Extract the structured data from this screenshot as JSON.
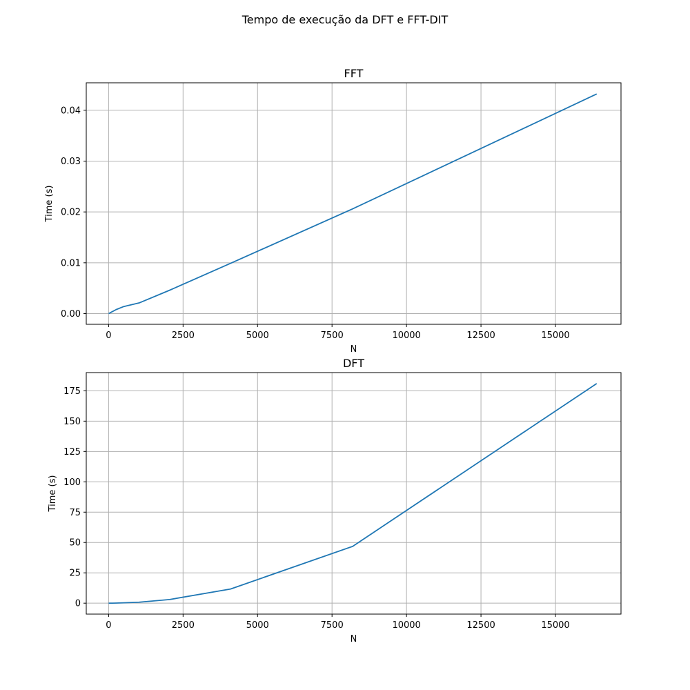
{
  "figure": {
    "suptitle": "Tempo de execução da DFT e FFT-DIT"
  },
  "colors": {
    "series": "#1f77b4",
    "grid": "#b0b0b0"
  },
  "chart_data": [
    {
      "type": "line",
      "title": "FFT",
      "xlabel": "N",
      "ylabel": "Time (s)",
      "grid": true,
      "xlim": [
        -750,
        17200
      ],
      "ylim": [
        -0.0021,
        0.0454
      ],
      "xticks": [
        0,
        2500,
        5000,
        7500,
        10000,
        12500,
        15000
      ],
      "xtick_labels": [
        "0",
        "2500",
        "5000",
        "7500",
        "10000",
        "12500",
        "15000"
      ],
      "yticks": [
        0.0,
        0.01,
        0.02,
        0.03,
        0.04
      ],
      "ytick_labels": [
        "0.00",
        "0.01",
        "0.02",
        "0.03",
        "0.04"
      ],
      "series": [
        {
          "x": [
            2,
            4,
            8,
            16,
            32,
            64,
            128,
            256,
            512,
            1024,
            2048,
            4096,
            8192,
            16384
          ],
          "y": [
            0.0,
            1e-05,
            2e-05,
            5e-05,
            0.0001,
            0.0002,
            0.0004,
            0.0008,
            0.0014,
            0.0021,
            0.0046,
            0.0099,
            0.0206,
            0.0432
          ]
        }
      ]
    },
    {
      "type": "line",
      "title": "DFT",
      "xlabel": "N",
      "ylabel": "Time (s)",
      "grid": true,
      "xlim": [
        -750,
        17200
      ],
      "ylim": [
        -9,
        190
      ],
      "xticks": [
        0,
        2500,
        5000,
        7500,
        10000,
        12500,
        15000
      ],
      "xtick_labels": [
        "0",
        "2500",
        "5000",
        "7500",
        "10000",
        "12500",
        "15000"
      ],
      "yticks": [
        0,
        25,
        50,
        75,
        100,
        125,
        150,
        175
      ],
      "ytick_labels": [
        "0",
        "25",
        "50",
        "75",
        "100",
        "125",
        "150",
        "175"
      ],
      "series": [
        {
          "x": [
            2,
            4,
            8,
            16,
            32,
            64,
            128,
            256,
            512,
            1024,
            2048,
            4096,
            8192,
            16384
          ],
          "y": [
            0.0,
            0.0,
            0.0,
            0.0,
            0.0,
            0.01,
            0.03,
            0.1,
            0.3,
            0.8,
            3.0,
            11.7,
            46.8,
            181
          ]
        }
      ]
    }
  ]
}
